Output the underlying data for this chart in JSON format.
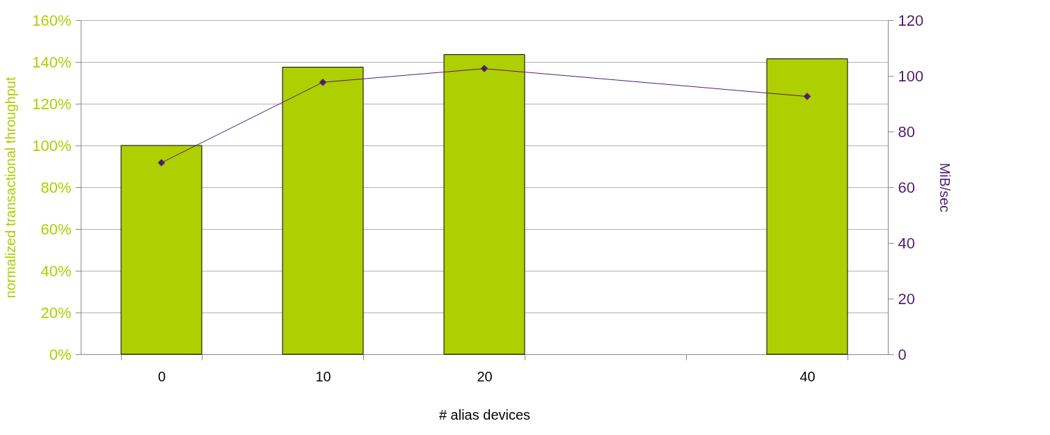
{
  "chart_data": {
    "type": "bar",
    "xlabel": "# alias devices",
    "ylabel": "normalized transactional throughput",
    "y2label": "MiB/sec",
    "categories": [
      "0",
      "10",
      "20",
      null,
      "40"
    ],
    "series": [
      {
        "color": "#aecf00",
        "values": [
          100,
          137.5,
          143.5,
          null,
          141.5
        ]
      },
      {
        "type": "line",
        "axis": "y2",
        "color": "#4e1d73",
        "marker": "diamond",
        "line_style": "solid",
        "values": [
          68.8,
          97.7,
          102.6,
          null,
          92.6
        ]
      }
    ],
    "ylim": [
      0,
      160
    ],
    "yticks": [
      {
        "value": 0,
        "label": "0%"
      },
      {
        "value": 20,
        "label": "20%"
      },
      {
        "value": 40,
        "label": "40%"
      },
      {
        "value": 60,
        "label": "60%"
      },
      {
        "value": 80,
        "label": "80%"
      },
      {
        "value": 100,
        "label": "100%"
      },
      {
        "value": 120,
        "label": "120%"
      },
      {
        "value": 140,
        "label": "140%"
      },
      {
        "value": 160,
        "label": "160%"
      }
    ],
    "y2lim": [
      0,
      120
    ],
    "y2ticks": [
      0,
      20,
      40,
      60,
      80,
      100,
      120
    ],
    "grid": "y"
  }
}
